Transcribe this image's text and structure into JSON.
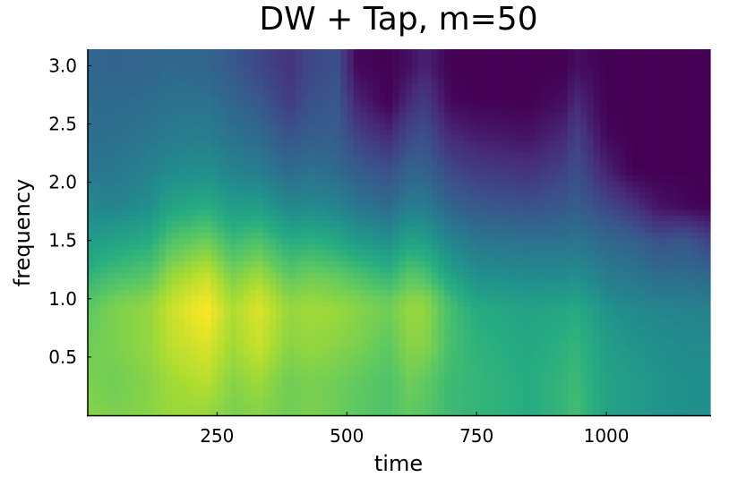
{
  "chart_data": {
    "type": "heatmap",
    "title": "DW + Tap, m=50",
    "xlabel": "time",
    "ylabel": "frequency",
    "xlim": [
      1,
      1200
    ],
    "ylim": [
      0.0,
      3.14159
    ],
    "xticks": [
      250,
      500,
      750,
      1000
    ],
    "xtick_labels": [
      "250",
      "500",
      "750",
      "1000"
    ],
    "yticks": [
      0.5,
      1.0,
      1.5,
      2.0,
      2.5,
      3.0
    ],
    "ytick_labels": [
      "0.5",
      "1.0",
      "1.5",
      "2.0",
      "2.5",
      "3.0"
    ],
    "colormap": "viridis",
    "value_range": [
      0.0,
      1.0
    ],
    "grid": false,
    "legend": "none",
    "freq": [
      0.05,
      0.3,
      0.6,
      0.9,
      1.0,
      1.2,
      1.5,
      1.8,
      2.1,
      2.4,
      2.7,
      3.0
    ],
    "time": [
      1,
      50,
      120,
      160,
      230,
      280,
      330,
      390,
      430,
      480,
      520,
      580,
      620,
      650,
      700,
      750,
      850,
      920,
      940,
      1000,
      1050,
      1100,
      1150,
      1200
    ],
    "values": [
      [
        0.82,
        0.8,
        0.78,
        0.75,
        0.72,
        0.65,
        0.55,
        0.47,
        0.4,
        0.37,
        0.35,
        0.33
      ],
      [
        0.8,
        0.78,
        0.8,
        0.8,
        0.78,
        0.7,
        0.58,
        0.45,
        0.4,
        0.37,
        0.35,
        0.32
      ],
      [
        0.82,
        0.82,
        0.84,
        0.84,
        0.82,
        0.74,
        0.62,
        0.5,
        0.44,
        0.4,
        0.36,
        0.33
      ],
      [
        0.85,
        0.86,
        0.9,
        0.92,
        0.9,
        0.84,
        0.72,
        0.58,
        0.48,
        0.42,
        0.38,
        0.34
      ],
      [
        0.85,
        0.9,
        0.95,
        1.0,
        0.98,
        0.92,
        0.78,
        0.62,
        0.5,
        0.43,
        0.38,
        0.33
      ],
      [
        0.8,
        0.82,
        0.86,
        0.88,
        0.86,
        0.8,
        0.68,
        0.55,
        0.45,
        0.38,
        0.33,
        0.28
      ],
      [
        0.82,
        0.86,
        0.92,
        0.95,
        0.93,
        0.86,
        0.72,
        0.56,
        0.42,
        0.35,
        0.28,
        0.22
      ],
      [
        0.78,
        0.78,
        0.82,
        0.84,
        0.82,
        0.75,
        0.62,
        0.46,
        0.35,
        0.26,
        0.18,
        0.15
      ],
      [
        0.8,
        0.8,
        0.84,
        0.86,
        0.84,
        0.78,
        0.64,
        0.48,
        0.38,
        0.3,
        0.25,
        0.22
      ],
      [
        0.78,
        0.78,
        0.82,
        0.85,
        0.82,
        0.76,
        0.6,
        0.45,
        0.35,
        0.3,
        0.28,
        0.25
      ],
      [
        0.75,
        0.76,
        0.8,
        0.82,
        0.8,
        0.72,
        0.55,
        0.4,
        0.3,
        0.2,
        0.1,
        0.02
      ],
      [
        0.72,
        0.72,
        0.75,
        0.78,
        0.76,
        0.66,
        0.5,
        0.35,
        0.25,
        0.12,
        0.0,
        0.0
      ],
      [
        0.76,
        0.78,
        0.82,
        0.84,
        0.82,
        0.74,
        0.58,
        0.42,
        0.32,
        0.22,
        0.12,
        0.04
      ],
      [
        0.74,
        0.76,
        0.82,
        0.84,
        0.82,
        0.72,
        0.56,
        0.42,
        0.32,
        0.25,
        0.18,
        0.1
      ],
      [
        0.68,
        0.68,
        0.7,
        0.7,
        0.68,
        0.58,
        0.45,
        0.32,
        0.22,
        0.12,
        0.02,
        0.0
      ],
      [
        0.66,
        0.66,
        0.65,
        0.62,
        0.58,
        0.5,
        0.4,
        0.28,
        0.18,
        0.08,
        0.0,
        0.0
      ],
      [
        0.62,
        0.62,
        0.6,
        0.58,
        0.55,
        0.48,
        0.38,
        0.25,
        0.15,
        0.05,
        0.0,
        0.0
      ],
      [
        0.66,
        0.66,
        0.64,
        0.6,
        0.56,
        0.48,
        0.38,
        0.28,
        0.2,
        0.12,
        0.04,
        0.0
      ],
      [
        0.7,
        0.68,
        0.66,
        0.62,
        0.58,
        0.5,
        0.4,
        0.3,
        0.25,
        0.2,
        0.12,
        0.04
      ],
      [
        0.58,
        0.58,
        0.56,
        0.52,
        0.48,
        0.42,
        0.34,
        0.22,
        0.1,
        0.02,
        0.0,
        0.0
      ],
      [
        0.55,
        0.55,
        0.52,
        0.48,
        0.45,
        0.4,
        0.32,
        0.15,
        0.0,
        0.0,
        0.0,
        0.0
      ],
      [
        0.52,
        0.52,
        0.5,
        0.46,
        0.42,
        0.36,
        0.25,
        0.05,
        0.0,
        0.0,
        0.0,
        0.0
      ],
      [
        0.5,
        0.5,
        0.48,
        0.45,
        0.42,
        0.36,
        0.28,
        0.02,
        0.0,
        0.0,
        0.0,
        0.0
      ],
      [
        0.5,
        0.5,
        0.48,
        0.44,
        0.4,
        0.34,
        0.2,
        0.0,
        0.0,
        0.0,
        0.0,
        0.0
      ]
    ]
  }
}
